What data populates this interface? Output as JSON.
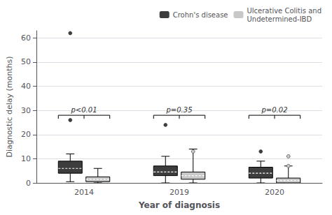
{
  "chart_data": {
    "type": "box",
    "xlabel": "Year of diagnosis",
    "ylabel": "Diagnostic delay (months)",
    "categories": [
      "2014",
      "2019",
      "2020"
    ],
    "series": [
      {
        "name": "Crohn's disease",
        "color": "#3d3d3d",
        "q1": [
          4.0,
          3.0,
          2.0
        ],
        "median": [
          6.0,
          4.5,
          4.0
        ],
        "q3": [
          9.0,
          7.0,
          6.5
        ],
        "whisker_low": [
          0.5,
          0.0,
          0.0
        ],
        "whisker_high": [
          12.0,
          11.0,
          9.0
        ],
        "outliers": [
          [
            62,
            26
          ],
          [
            24
          ],
          [
            13
          ]
        ]
      },
      {
        "name": "Ulcerative Colitis and\nUndetermined-IBD",
        "color": "#c8c8c8",
        "q1": [
          0.5,
          1.5,
          0.0
        ],
        "median": [
          1.5,
          3.0,
          1.0
        ],
        "q3": [
          2.5,
          4.5,
          2.0
        ],
        "whisker_low": [
          0.0,
          0.0,
          0.0
        ],
        "whisker_high": [
          6.0,
          14.0,
          7.0
        ],
        "outliers": [
          [],
          [
            13
          ],
          [
            11,
            7
          ]
        ]
      }
    ],
    "annotations": [
      {
        "text": "p<0.01",
        "y": 28
      },
      {
        "text": "p=0.35",
        "y": 28
      },
      {
        "text": "p=0.02",
        "y": 28
      }
    ],
    "ylim": [
      0,
      63
    ],
    "yticks": [
      0,
      10,
      20,
      30,
      40,
      50,
      60
    ],
    "grid": true,
    "legend": "upper right"
  }
}
